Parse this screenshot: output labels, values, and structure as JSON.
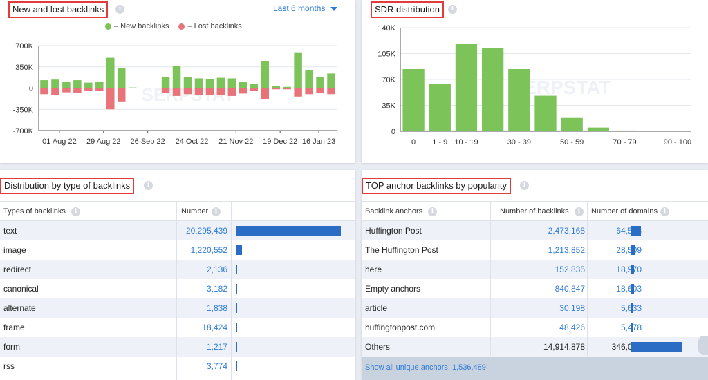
{
  "new_lost": {
    "title": "New and lost backlinks",
    "period": "Last 6 months",
    "legend_new": "– New backlinks",
    "legend_lost": "– Lost backlinks",
    "colors": {
      "new": "#7cc35a",
      "lost": "#e8747a"
    },
    "watermark": "SERPSTAT"
  },
  "sdr": {
    "title": "SDR distribution",
    "watermark": "SERPSTAT"
  },
  "chart_data": [
    {
      "type": "bar",
      "title": "New and lost backlinks",
      "ylim": [
        -700000,
        700000
      ],
      "y_ticks": [
        "700K",
        "350K",
        "0",
        "-350K",
        "-700K"
      ],
      "x_tick_labels": [
        "01 Aug 22",
        "29 Aug 22",
        "26 Sep 22",
        "24 Oct 22",
        "21 Nov 22",
        "19 Dec 22",
        "16 Jan 23"
      ],
      "series": [
        {
          "name": "New backlinks",
          "values": [
            130000,
            140000,
            100000,
            130000,
            90000,
            100000,
            500000,
            330000,
            10000,
            5000,
            3000,
            180000,
            360000,
            180000,
            160000,
            150000,
            170000,
            160000,
            100000,
            70000,
            440000,
            30000,
            20000,
            590000,
            300000,
            180000,
            240000
          ]
        },
        {
          "name": "Lost backlinks",
          "values": [
            -100000,
            -110000,
            -70000,
            -80000,
            -40000,
            -40000,
            -350000,
            -220000,
            -5000,
            -3000,
            -2000,
            -80000,
            -130000,
            -100000,
            -110000,
            -120000,
            -120000,
            -130000,
            -90000,
            -50000,
            -180000,
            -20000,
            -20000,
            -140000,
            -100000,
            -80000,
            -100000
          ]
        }
      ]
    },
    {
      "type": "bar",
      "title": "SDR distribution",
      "categories": [
        "0",
        "1 - 9",
        "10 - 19",
        "",
        "30 - 39",
        "",
        "50 - 59",
        "",
        "70 - 79",
        "",
        "90 - 100"
      ],
      "values": [
        84000,
        64000,
        118000,
        112000,
        84000,
        48000,
        18000,
        5000,
        1000,
        0,
        0
      ],
      "ylim": [
        0,
        140000
      ],
      "y_ticks": [
        "140K",
        "105K",
        "70K",
        "35K",
        "0"
      ]
    }
  ],
  "dist": {
    "title": "Distribution by type of backlinks",
    "col_type": "Types of backlinks",
    "col_number": "Number",
    "rows": [
      {
        "type": "text",
        "number": "20,295,439",
        "value": 20295439
      },
      {
        "type": "image",
        "number": "1,220,552",
        "value": 1220552
      },
      {
        "type": "redirect",
        "number": "2,136",
        "value": 2136
      },
      {
        "type": "canonical",
        "number": "3,182",
        "value": 3182
      },
      {
        "type": "alternate",
        "number": "1,838",
        "value": 1838
      },
      {
        "type": "frame",
        "number": "18,424",
        "value": 18424
      },
      {
        "type": "form",
        "number": "1,217",
        "value": 1217
      },
      {
        "type": "rss",
        "number": "3,774",
        "value": 3774
      }
    ]
  },
  "anchors": {
    "title": "TOP anchor backlinks by popularity",
    "col_anchor": "Backlink anchors",
    "col_backlinks": "Number of backlinks",
    "col_domains": "Number of domains",
    "rows": [
      {
        "anchor": "Huffington Post",
        "backlinks": "2,473,168",
        "domains": "64,538",
        "domains_value": 64538
      },
      {
        "anchor": "The Huffington Post",
        "backlinks": "1,213,852",
        "domains": "28,509",
        "domains_value": 28509
      },
      {
        "anchor": "here",
        "backlinks": "152,835",
        "domains": "18,970",
        "domains_value": 18970
      },
      {
        "anchor": "Empty anchors",
        "backlinks": "840,847",
        "domains": "18,603",
        "domains_value": 18603
      },
      {
        "anchor": "article",
        "backlinks": "30,198",
        "domains": "5,633",
        "domains_value": 5633
      },
      {
        "anchor": "huffingtonpost.com",
        "backlinks": "48,426",
        "domains": "5,478",
        "domains_value": 5478
      },
      {
        "anchor": "Others",
        "backlinks": "14,914,878",
        "domains": "346,084",
        "domains_value": 346084
      }
    ],
    "footer": "Show all unique anchors: 1,536,489"
  }
}
